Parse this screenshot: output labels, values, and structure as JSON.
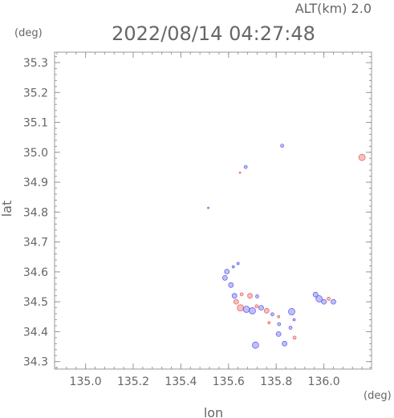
{
  "header": {
    "alt_label": "ALT(km) 2.0",
    "datetime": "2022/08/14 04:27:48",
    "y_unit": "(deg)",
    "x_unit": "(deg)"
  },
  "chart_data": {
    "type": "scatter",
    "title": "2022/08/14 04:27:48",
    "xlabel": "lon",
    "ylabel": "lat",
    "xlim": [
      134.87,
      136.2
    ],
    "ylim": [
      34.275,
      35.335
    ],
    "xticks": [
      "135.0",
      "135.2",
      "135.4",
      "135.6",
      "135.8",
      "136.0"
    ],
    "yticks": [
      "34.3",
      "34.4",
      "34.5",
      "34.6",
      "34.7",
      "34.8",
      "34.9",
      "35.0",
      "35.1",
      "35.2",
      "35.3"
    ],
    "grid": false,
    "colors": {
      "positive": "#e84a4a",
      "negative": "#4a4ae8",
      "frame": "#999999",
      "text": "#666666"
    },
    "points": [
      {
        "x": 135.825,
        "y": 35.022,
        "sign": "negative",
        "size": 2
      },
      {
        "x": 135.672,
        "y": 34.951,
        "sign": "negative",
        "size": 2
      },
      {
        "x": 135.648,
        "y": 34.932,
        "sign": "positive",
        "size": 1
      },
      {
        "x": 136.16,
        "y": 34.983,
        "sign": "positive",
        "size": 4
      },
      {
        "x": 135.515,
        "y": 34.814,
        "sign": "negative",
        "size": 1
      },
      {
        "x": 135.64,
        "y": 34.628,
        "sign": "negative",
        "size": 1.5
      },
      {
        "x": 135.62,
        "y": 34.617,
        "sign": "negative",
        "size": 1.5
      },
      {
        "x": 135.593,
        "y": 34.601,
        "sign": "negative",
        "size": 3
      },
      {
        "x": 135.585,
        "y": 34.58,
        "sign": "negative",
        "size": 3
      },
      {
        "x": 135.61,
        "y": 34.556,
        "sign": "negative",
        "size": 3
      },
      {
        "x": 135.625,
        "y": 34.52,
        "sign": "negative",
        "size": 3
      },
      {
        "x": 135.655,
        "y": 34.525,
        "sign": "positive",
        "size": 2
      },
      {
        "x": 135.69,
        "y": 34.52,
        "sign": "positive",
        "size": 3
      },
      {
        "x": 135.72,
        "y": 34.518,
        "sign": "negative",
        "size": 2
      },
      {
        "x": 135.632,
        "y": 34.5,
        "sign": "positive",
        "size": 3
      },
      {
        "x": 135.65,
        "y": 34.48,
        "sign": "positive",
        "size": 4
      },
      {
        "x": 135.675,
        "y": 34.475,
        "sign": "negative",
        "size": 4
      },
      {
        "x": 135.7,
        "y": 34.47,
        "sign": "negative",
        "size": 4
      },
      {
        "x": 135.718,
        "y": 34.485,
        "sign": "positive",
        "size": 2
      },
      {
        "x": 135.737,
        "y": 34.48,
        "sign": "negative",
        "size": 3
      },
      {
        "x": 135.76,
        "y": 34.47,
        "sign": "positive",
        "size": 3
      },
      {
        "x": 135.784,
        "y": 34.458,
        "sign": "negative",
        "size": 2
      },
      {
        "x": 135.81,
        "y": 34.45,
        "sign": "positive",
        "size": 1.5
      },
      {
        "x": 135.865,
        "y": 34.467,
        "sign": "negative",
        "size": 4
      },
      {
        "x": 135.875,
        "y": 34.44,
        "sign": "negative",
        "size": 1.5
      },
      {
        "x": 135.86,
        "y": 34.413,
        "sign": "negative",
        "size": 2
      },
      {
        "x": 135.877,
        "y": 34.38,
        "sign": "positive",
        "size": 2
      },
      {
        "x": 135.812,
        "y": 34.425,
        "sign": "negative",
        "size": 2
      },
      {
        "x": 135.81,
        "y": 34.392,
        "sign": "negative",
        "size": 3
      },
      {
        "x": 135.835,
        "y": 34.36,
        "sign": "negative",
        "size": 3
      },
      {
        "x": 135.713,
        "y": 34.355,
        "sign": "negative",
        "size": 4
      },
      {
        "x": 135.77,
        "y": 34.43,
        "sign": "positive",
        "size": 1.5
      },
      {
        "x": 135.965,
        "y": 34.524,
        "sign": "negative",
        "size": 3
      },
      {
        "x": 135.98,
        "y": 34.51,
        "sign": "negative",
        "size": 4
      },
      {
        "x": 136.0,
        "y": 34.5,
        "sign": "negative",
        "size": 3
      },
      {
        "x": 136.02,
        "y": 34.51,
        "sign": "positive",
        "size": 2
      },
      {
        "x": 136.04,
        "y": 34.5,
        "sign": "negative",
        "size": 3
      }
    ]
  }
}
